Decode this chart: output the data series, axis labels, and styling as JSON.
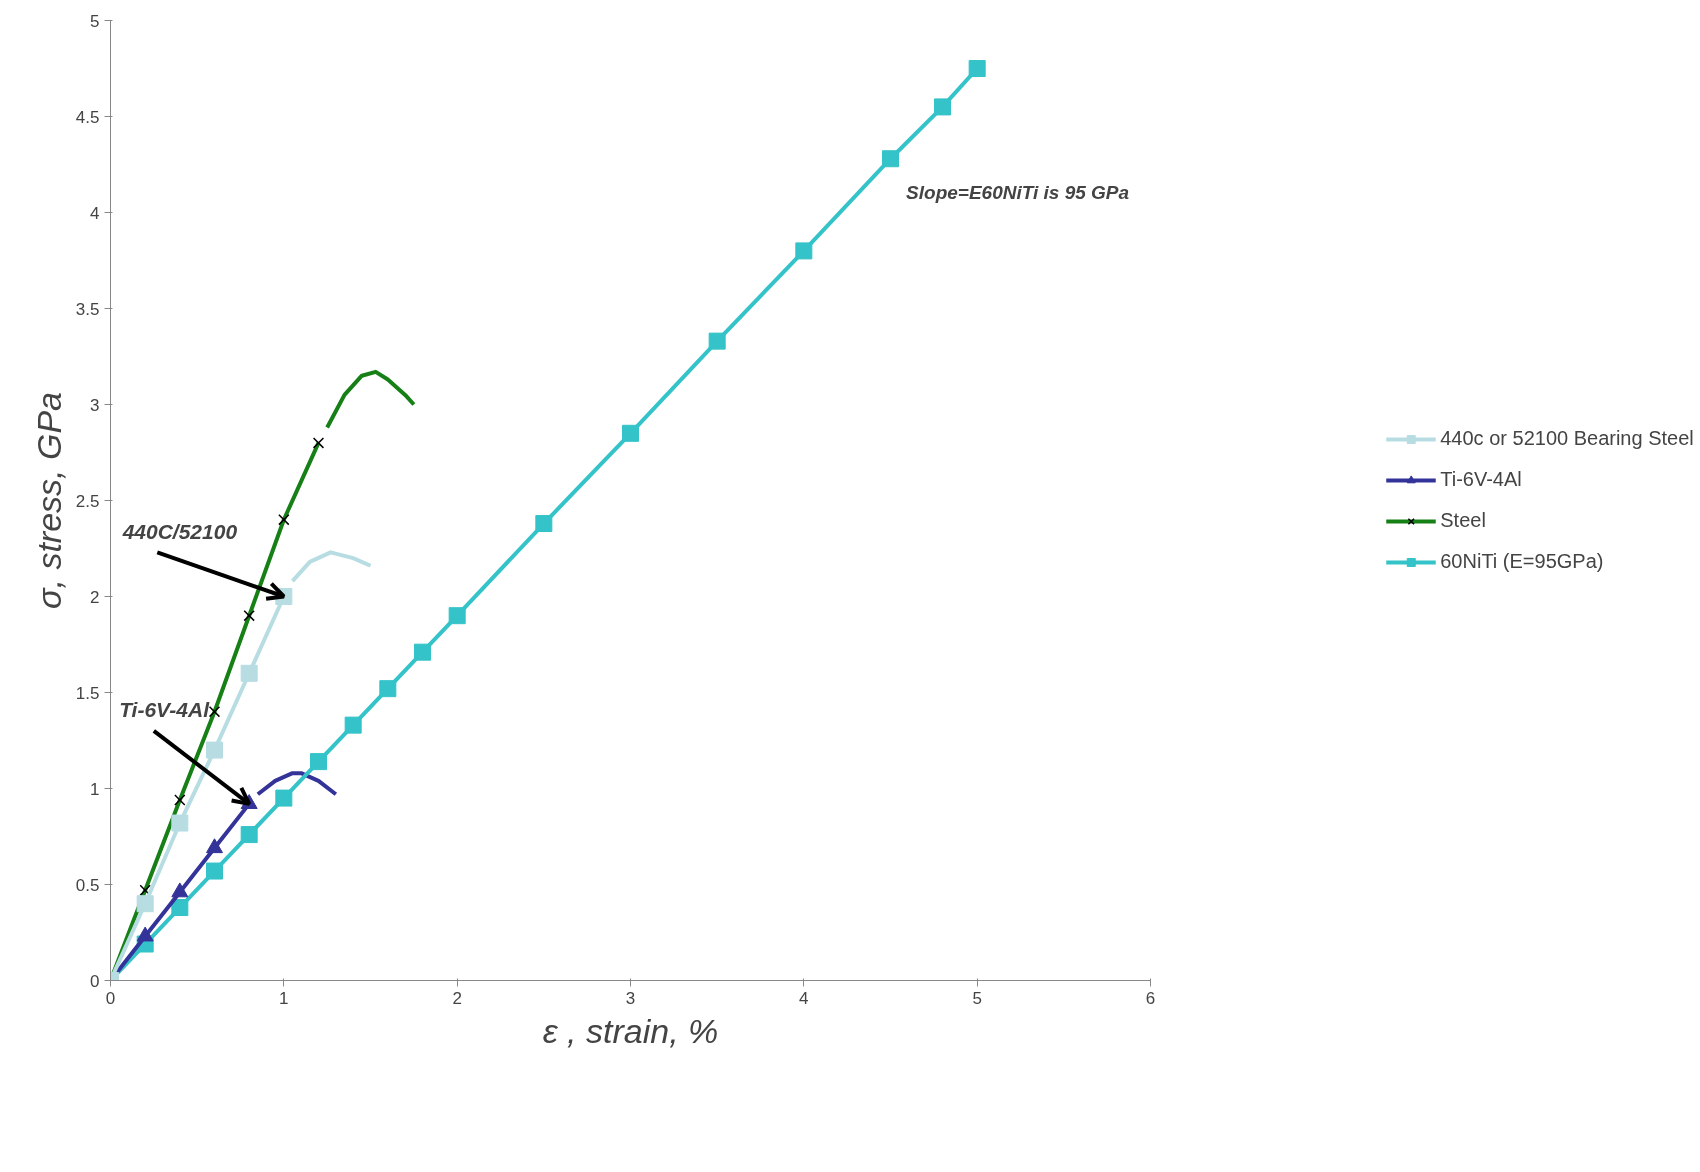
{
  "chart_data": {
    "type": "line",
    "xlabel": "ε , strain, %",
    "ylabel": "σ, stress, GPa",
    "xlim": [
      0,
      6
    ],
    "ylim": [
      0,
      5
    ],
    "xticks": [
      0,
      1,
      2,
      3,
      4,
      5,
      6
    ],
    "yticks": [
      0,
      0.5,
      1,
      1.5,
      2,
      2.5,
      3,
      3.5,
      4,
      4.5,
      5
    ],
    "grid": false,
    "legend": "right",
    "series": [
      {
        "name": "440c or 52100 Bearing Steel",
        "color": "#b7dde3",
        "marker": "square",
        "x": [
          0,
          0.2,
          0.4,
          0.6,
          0.8,
          1.0
        ],
        "values": [
          0,
          0.4,
          0.82,
          1.2,
          1.6,
          2.0
        ]
      },
      {
        "name": "Ti-6V-4Al",
        "color": "#333399",
        "marker": "triangle",
        "x": [
          0,
          0.2,
          0.4,
          0.6,
          0.8
        ],
        "values": [
          0,
          0.23,
          0.46,
          0.69,
          0.92
        ]
      },
      {
        "name": "Steel",
        "color": "#168016",
        "marker": "cross",
        "x": [
          0,
          0.2,
          0.4,
          0.6,
          0.8,
          1.0,
          1.2
        ],
        "values": [
          0,
          0.47,
          0.94,
          1.4,
          1.9,
          2.4,
          2.8
        ]
      },
      {
        "name": "60NiTi (E=95GPa)",
        "color": "#33c3c8",
        "marker": "square",
        "x": [
          0,
          0.2,
          0.4,
          0.6,
          0.8,
          1.0,
          1.2,
          1.4,
          1.6,
          1.8,
          2.0,
          2.5,
          3.0,
          3.5,
          4.0,
          4.5,
          4.8,
          5.0
        ],
        "values": [
          0,
          0.19,
          0.38,
          0.57,
          0.76,
          0.95,
          1.14,
          1.33,
          1.52,
          1.71,
          1.9,
          2.38,
          2.85,
          3.33,
          3.8,
          4.28,
          4.55,
          4.75
        ]
      },
      {
        "color": "#b7dde3",
        "marker": "none",
        "x": [
          1.05,
          1.15,
          1.27,
          1.4,
          1.5
        ],
        "values": [
          2.08,
          2.18,
          2.23,
          2.2,
          2.16
        ]
      },
      {
        "color": "#333399",
        "marker": "none",
        "x": [
          0.85,
          0.95,
          1.05,
          1.1,
          1.2,
          1.3
        ],
        "values": [
          0.97,
          1.04,
          1.08,
          1.08,
          1.04,
          0.97
        ]
      },
      {
        "color": "#168016",
        "marker": "none",
        "x": [
          1.25,
          1.35,
          1.45,
          1.53,
          1.6,
          1.7,
          1.75
        ],
        "values": [
          2.88,
          3.05,
          3.15,
          3.17,
          3.13,
          3.05,
          3.0
        ]
      }
    ],
    "annotations": [
      {
        "text": "440C/52100",
        "x": 1.0,
        "y": 2.0
      },
      {
        "text": "Ti-6V-4Al",
        "x": 0.8,
        "y": 0.92
      },
      "Slope=E60NiTi is 95 GPa"
    ]
  }
}
